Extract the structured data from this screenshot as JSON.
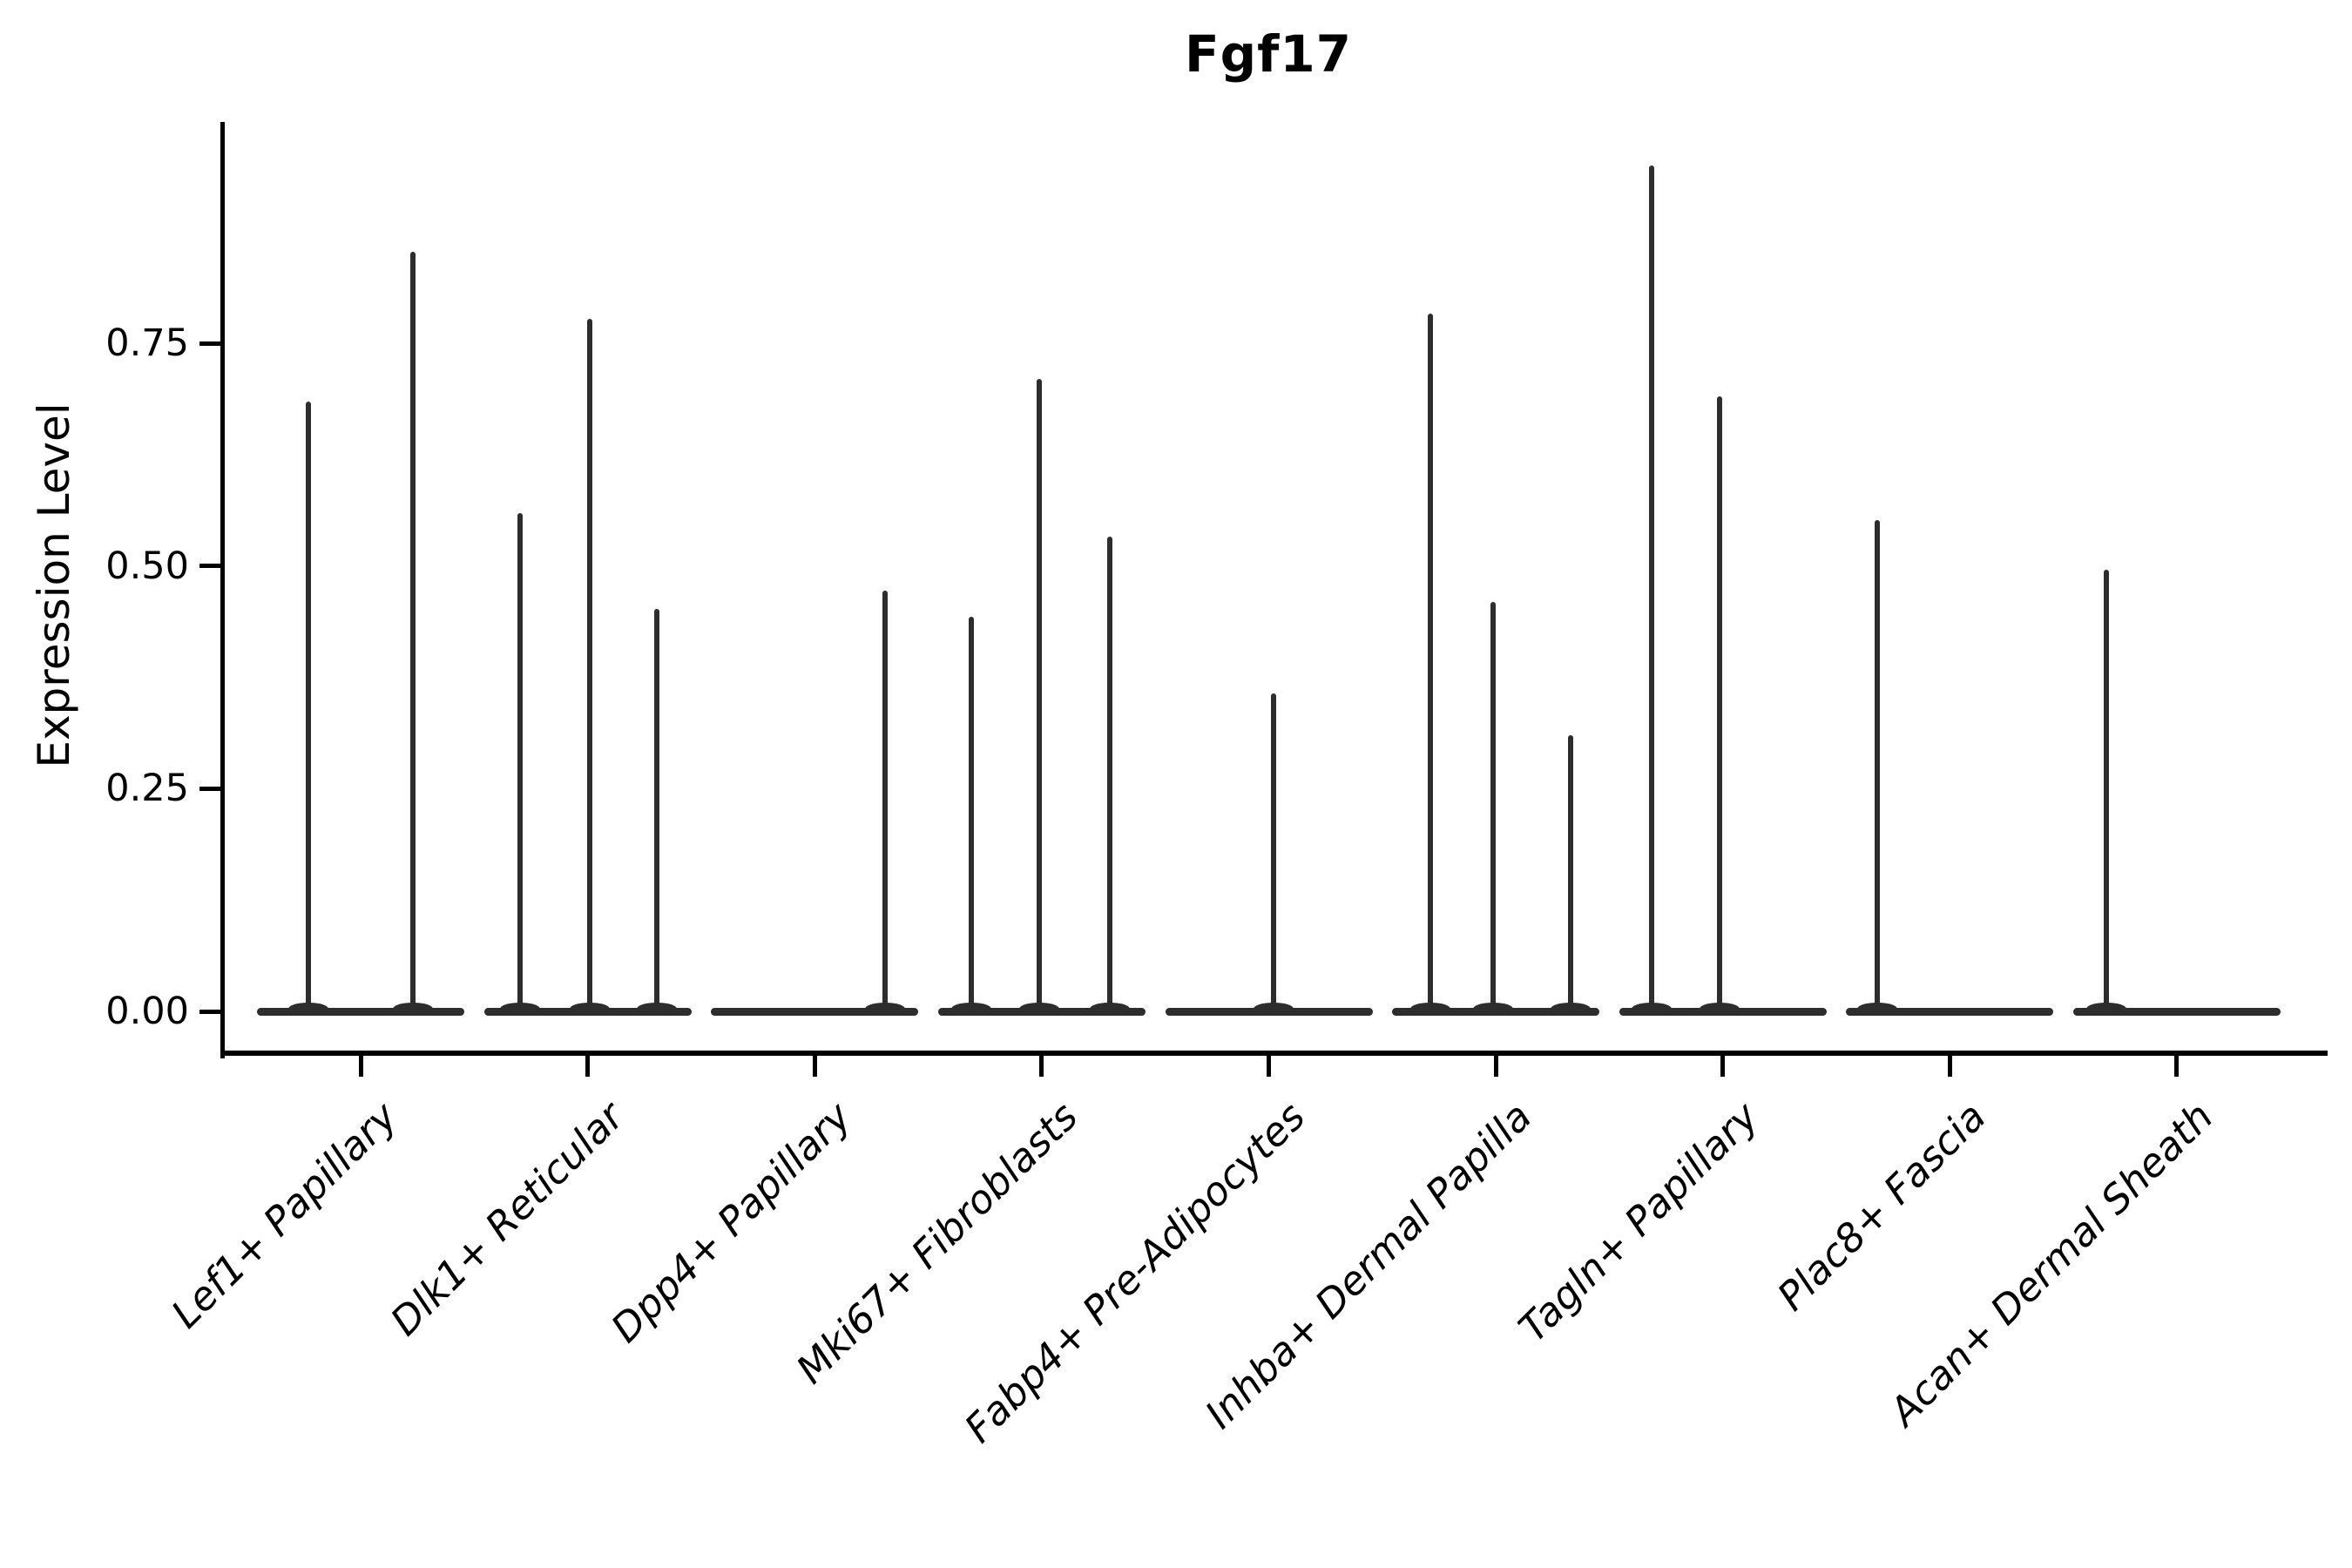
{
  "figure": {
    "title": "Fgf17",
    "ylabel": "Expression Level",
    "background_color": "#ffffff",
    "violin_color": "#2d2d2d",
    "axis_color": "#000000",
    "text_color": "#000000"
  },
  "chart_data": {
    "type": "violin",
    "title": "Fgf17",
    "xlabel": "",
    "ylabel": "Expression Level",
    "ylim": [
      0,
      1.0
    ],
    "ytick_values": [
      0,
      0.25,
      0.5,
      0.75
    ],
    "ytick_labels": [
      "0.00",
      "0.25",
      "0.50",
      "0.75"
    ],
    "grid": false,
    "legend_position": "none",
    "x_tick_rotation": 45,
    "x_tick_style": "italic",
    "categories": [
      "Lef1+ Papillary",
      "Dlk1+ Reticular",
      "Dpp4+ Papillary",
      "Mki67+ Fibroblasts",
      "Fabp4+ Pre-Adipocytes",
      "Inhba+ Dermal Papilla",
      "Tagln+ Papillary",
      "Plac8+ Fascia",
      "Acan+ Dermal Sheath"
    ],
    "violin_base_halfwidth": 0.455,
    "violins": [
      {
        "category": "Lef1+ Papillary",
        "spikes": [
          {
            "offset": -0.23,
            "value": 0.685
          },
          {
            "offset": 0.23,
            "value": 0.853
          }
        ]
      },
      {
        "category": "Dlk1+ Reticular",
        "spikes": [
          {
            "offset": -0.3,
            "value": 0.559
          },
          {
            "offset": 0.01,
            "value": 0.777
          },
          {
            "offset": 0.305,
            "value": 0.452
          }
        ]
      },
      {
        "category": "Dpp4+ Papillary",
        "spikes": [
          {
            "offset": 0.31,
            "value": 0.472
          }
        ]
      },
      {
        "category": "Mki67+ Fibroblasts",
        "spikes": [
          {
            "offset": -0.31,
            "value": 0.443
          },
          {
            "offset": -0.01,
            "value": 0.71
          },
          {
            "offset": 0.3,
            "value": 0.533
          }
        ]
      },
      {
        "category": "Fabp4+ Pre-Adipocytes",
        "spikes": [
          {
            "offset": 0.02,
            "value": 0.357
          }
        ]
      },
      {
        "category": "Inhba+ Dermal Papilla",
        "spikes": [
          {
            "offset": -0.29,
            "value": 0.783
          },
          {
            "offset": -0.01,
            "value": 0.46
          },
          {
            "offset": 0.33,
            "value": 0.31
          }
        ]
      },
      {
        "category": "Tagln+ Papillary",
        "spikes": [
          {
            "offset": -0.315,
            "value": 0.95
          },
          {
            "offset": -0.015,
            "value": 0.69
          }
        ]
      },
      {
        "category": "Plac8+ Fascia",
        "spikes": [
          {
            "offset": -0.32,
            "value": 0.552
          }
        ]
      },
      {
        "category": "Acan+ Dermal Sheath",
        "spikes": [
          {
            "offset": -0.31,
            "value": 0.496
          }
        ]
      }
    ]
  }
}
